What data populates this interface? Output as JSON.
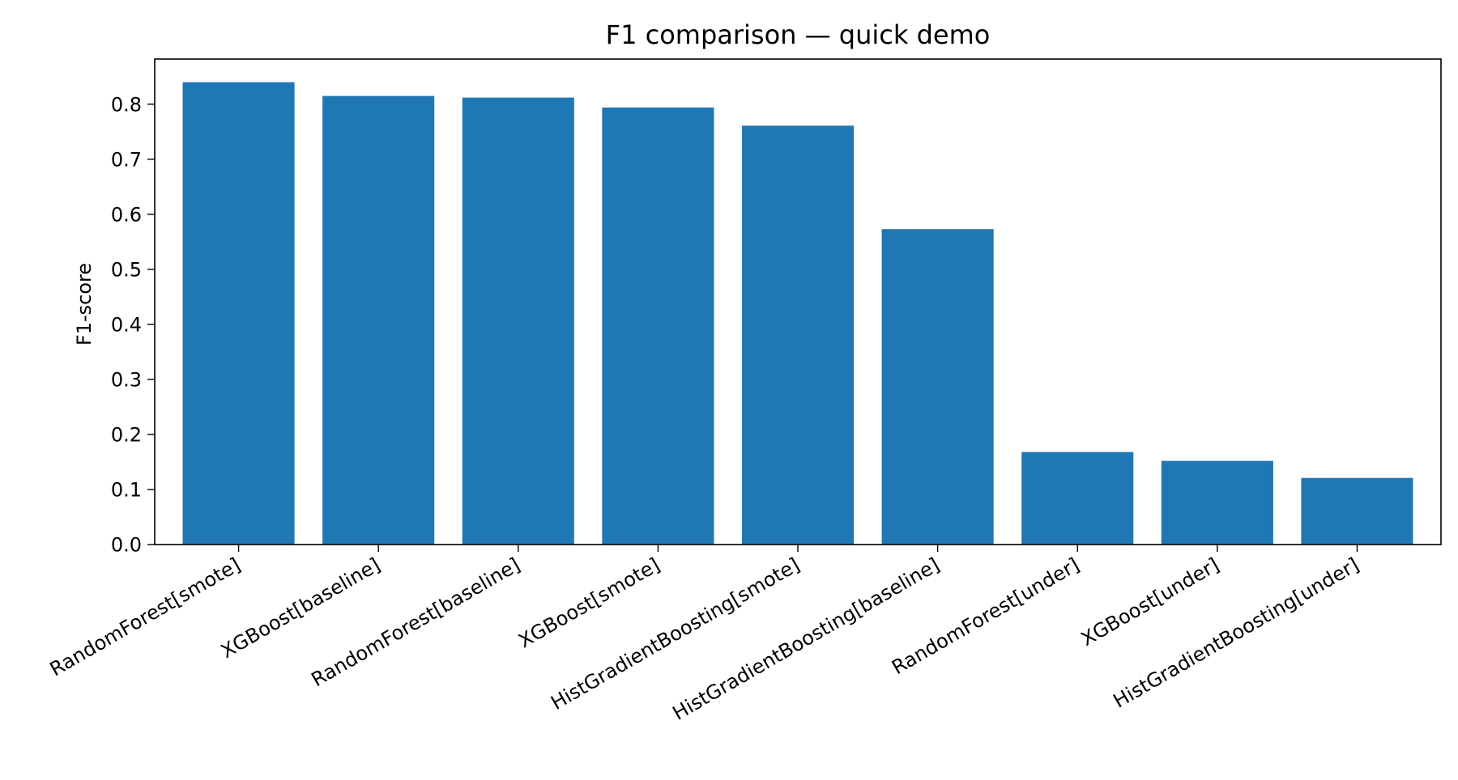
{
  "chart_data": {
    "type": "bar",
    "title": "F1 comparison — quick demo",
    "xlabel": "",
    "ylabel": "F1-score",
    "ylim": [
      0.0,
      0.882
    ],
    "yticks": [
      "0.0",
      "0.1",
      "0.2",
      "0.3",
      "0.4",
      "0.5",
      "0.6",
      "0.7",
      "0.8"
    ],
    "grid": false,
    "bar_color": "#1f77b4",
    "categories": [
      "RandomForest[smote]",
      "XGBoost[baseline]",
      "RandomForest[baseline]",
      "XGBoost[smote]",
      "HistGradientBoosting[smote]",
      "HistGradientBoosting[baseline]",
      "RandomForest[under]",
      "XGBoost[under]",
      "HistGradientBoosting[under]"
    ],
    "values": [
      0.84,
      0.815,
      0.812,
      0.794,
      0.761,
      0.573,
      0.168,
      0.152,
      0.121
    ]
  }
}
